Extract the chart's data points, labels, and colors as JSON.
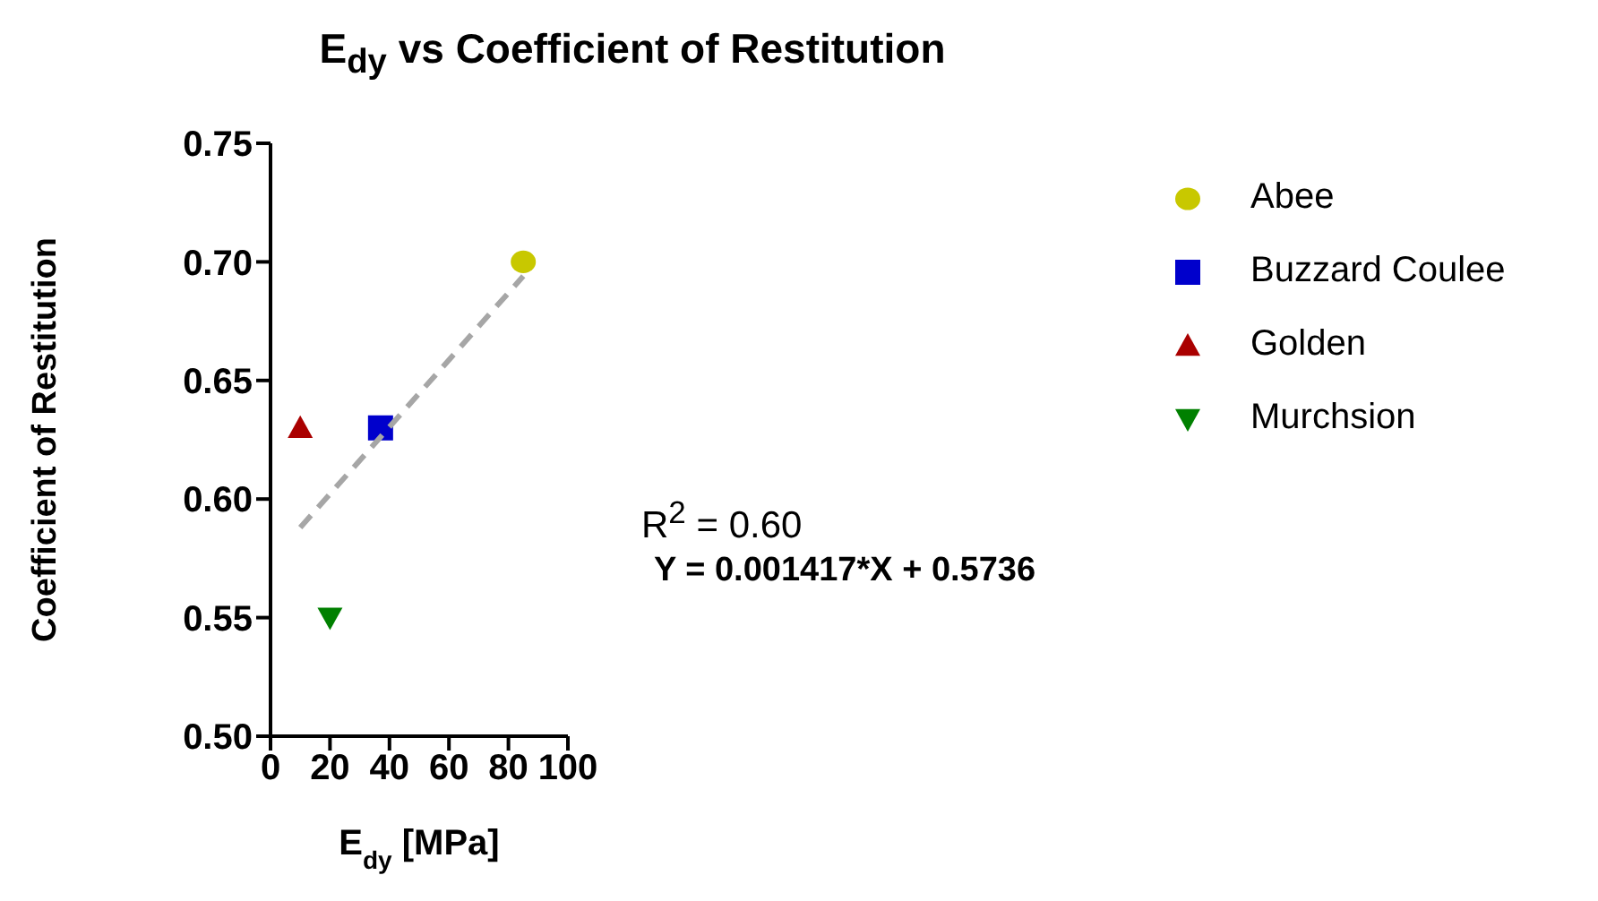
{
  "chart_data": {
    "type": "scatter",
    "title": "E$_{dy}$ vs Coefficient of Restitution",
    "xlabel": "E$_{dy}$ [MPa]",
    "ylabel": "Coefficient of Restitution",
    "xlim": [
      0,
      100
    ],
    "xticks": [
      0,
      20,
      40,
      60,
      80,
      100
    ],
    "ylim": [
      0.5,
      0.75
    ],
    "yticks": [
      {
        "value": 0.5,
        "label": "0.50"
      },
      {
        "value": 0.55,
        "label": "0.55"
      },
      {
        "value": 0.6,
        "label": "0.60"
      },
      {
        "value": 0.65,
        "label": "0.65"
      },
      {
        "value": 0.7,
        "label": "0.70"
      },
      {
        "value": 0.75,
        "label": "0.75"
      }
    ],
    "grid": false,
    "legend": "top right",
    "series": [
      {
        "name": "Abee",
        "color": "#c8c800",
        "marker": "circle",
        "x": [
          85
        ],
        "values": [
          0.7
        ]
      },
      {
        "name": "Buzzard Coulee",
        "color": "#0000cc",
        "marker": "square",
        "x": [
          37
        ],
        "values": [
          0.63
        ]
      },
      {
        "name": "Golden",
        "color": "#aa0000",
        "marker": "triangle",
        "x": [
          10
        ],
        "values": [
          0.63
        ]
      },
      {
        "name": "Murchsion",
        "color": "#008000",
        "marker": "triangle-down",
        "x": [
          20
        ],
        "values": [
          0.55
        ]
      },
      {
        "type": "line",
        "color": "#a6a6a6",
        "line_style": "dashed",
        "marker": "none",
        "x": [
          10,
          85
        ],
        "values": [
          0.588,
          0.694
        ]
      }
    ],
    "annotations": [
      "R$^{2}$ = 0.60",
      "Y = 0.001417*X + 0.5736"
    ]
  }
}
